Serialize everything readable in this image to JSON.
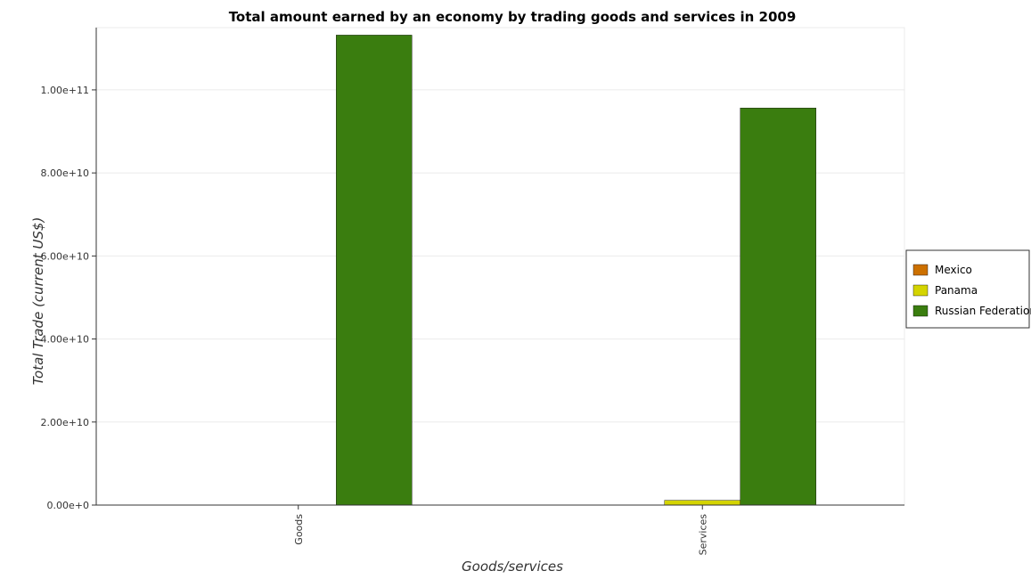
{
  "chart_data": {
    "type": "bar",
    "title": "Total amount earned by an economy by trading goods and services in 2009",
    "xlabel": "Goods/services",
    "ylabel": "Total Trade (current US$)",
    "categories": [
      "Goods",
      "Services"
    ],
    "series": [
      {
        "name": "Mexico",
        "color": "#cc7000",
        "values": [
          0,
          0
        ]
      },
      {
        "name": "Panama",
        "color": "#d4d400",
        "values": [
          0,
          1150000000
        ]
      },
      {
        "name": "Russian Federation",
        "color": "#3a7d0f",
        "values": [
          113200000000,
          95650000000
        ]
      }
    ],
    "ylim": [
      0,
      115000000000
    ],
    "yticks": [
      0,
      20000000000,
      40000000000,
      60000000000,
      80000000000,
      100000000000
    ],
    "ytick_labels": [
      "0.00e+0",
      "2.00e+10",
      "4.00e+10",
      "6.00e+10",
      "8.00e+10",
      "1.00e+11"
    ],
    "grid": true,
    "legend_position": "right"
  }
}
